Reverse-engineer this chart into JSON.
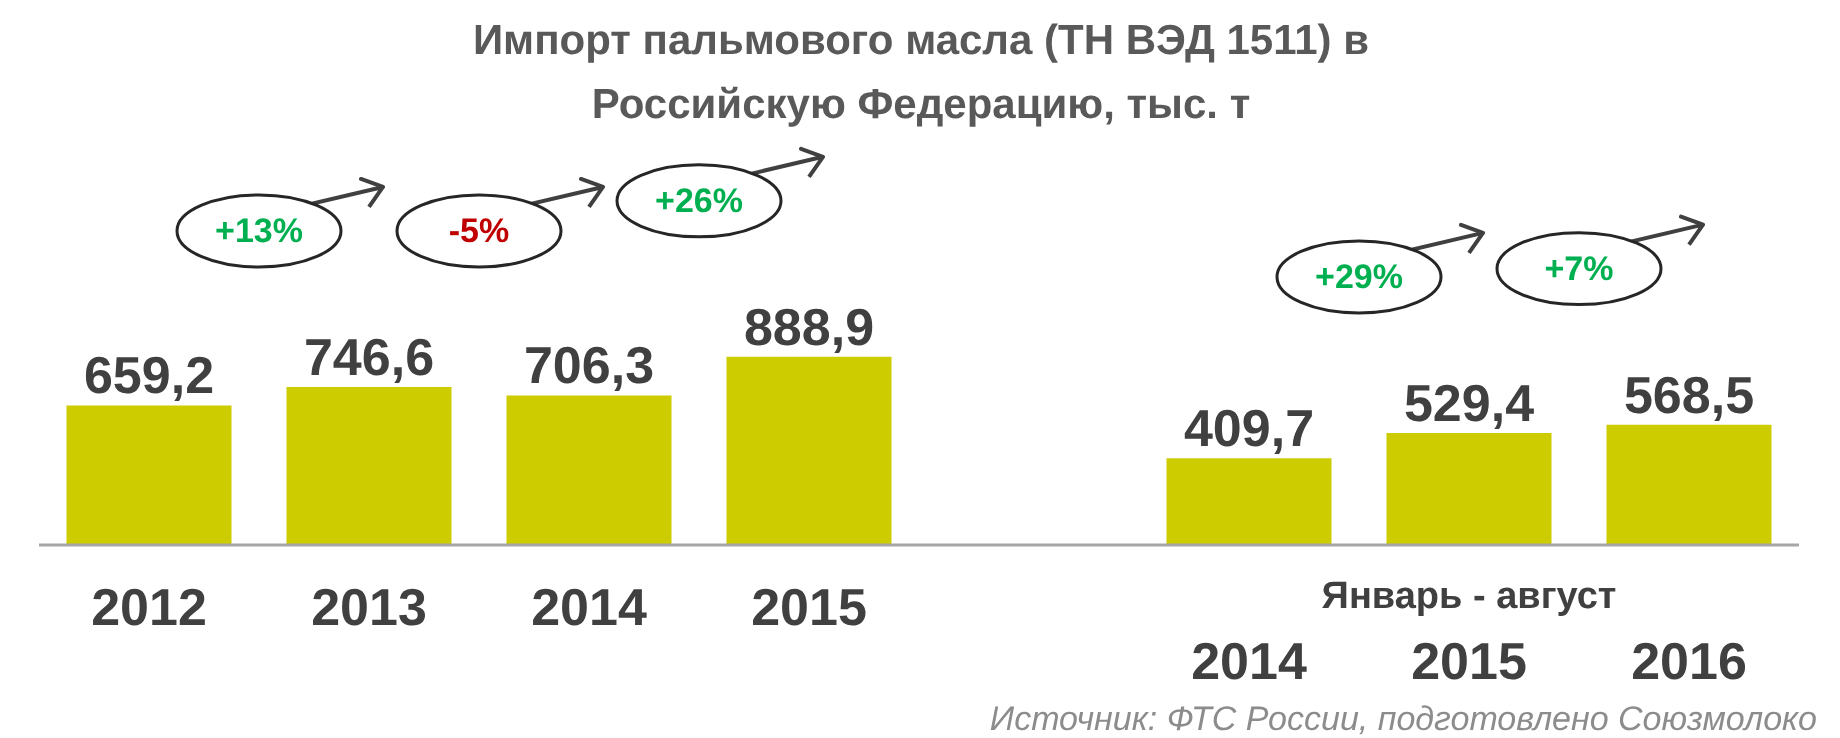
{
  "chart_data": {
    "type": "bar",
    "title": "Импорт пальмового масла (ТН ВЭД 1511) в Российскую Федерацию, тыс. т",
    "categories": [
      "2012",
      "2013",
      "2014",
      "2015",
      null,
      "2014",
      "2015",
      "2016"
    ],
    "values": [
      659.2,
      746.6,
      706.3,
      888.9,
      null,
      409.7,
      529.4,
      568.5
    ],
    "color": "#cccc00",
    "grid": false,
    "value_labels": [
      "659,2",
      "746,6",
      "706,3",
      "888,9",
      null,
      "409,7",
      "529,4",
      "568,5"
    ],
    "annotations": [
      "+13%",
      "-5%",
      "+26%",
      "+29%",
      "+7%",
      "Январь - август",
      "Источник: ФТС России, подготовлено Союзмолоко"
    ]
  }
}
